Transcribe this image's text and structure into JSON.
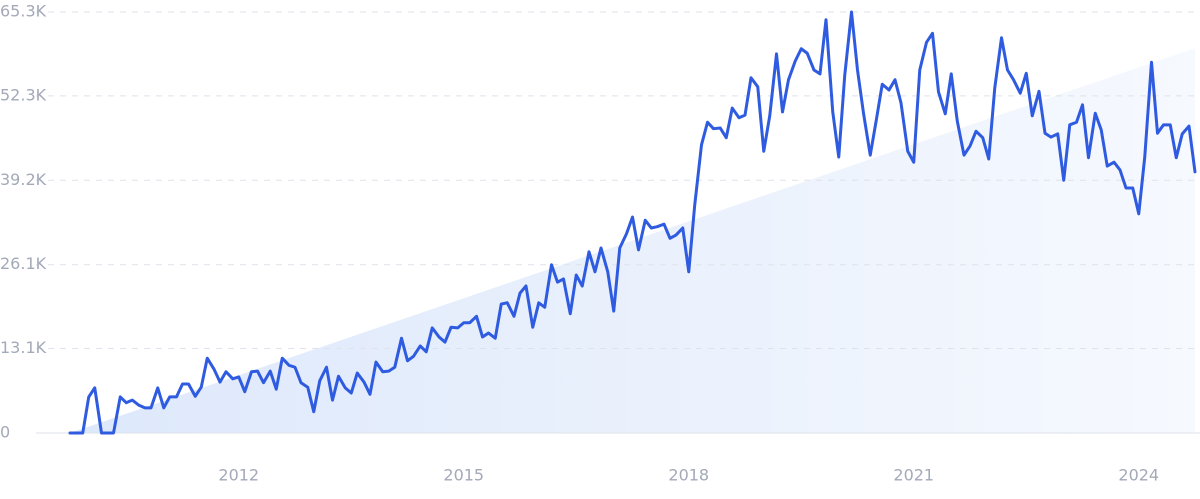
{
  "chart_data": {
    "type": "line",
    "x": [
      2009.75,
      2009.83,
      2009.92,
      2010,
      2010.08,
      2010.17,
      2010.25,
      2010.33,
      2010.42,
      2010.5,
      2010.58,
      2010.67,
      2010.75,
      2010.83,
      2010.92,
      2011,
      2011.08,
      2011.17,
      2011.25,
      2011.33,
      2011.42,
      2011.5,
      2011.58,
      2011.67,
      2011.75,
      2011.83,
      2011.92,
      2012,
      2012.08,
      2012.17,
      2012.25,
      2012.33,
      2012.42,
      2012.5,
      2012.58,
      2012.67,
      2012.75,
      2012.83,
      2012.92,
      2013,
      2013.08,
      2013.17,
      2013.25,
      2013.33,
      2013.42,
      2013.5,
      2013.58,
      2013.67,
      2013.75,
      2013.83,
      2013.92,
      2014,
      2014.08,
      2014.17,
      2014.25,
      2014.33,
      2014.42,
      2014.5,
      2014.58,
      2014.67,
      2014.75,
      2014.83,
      2014.92,
      2015,
      2015.08,
      2015.17,
      2015.25,
      2015.33,
      2015.42,
      2015.5,
      2015.58,
      2015.67,
      2015.75,
      2015.83,
      2015.92,
      2016,
      2016.08,
      2016.17,
      2016.25,
      2016.33,
      2016.42,
      2016.5,
      2016.58,
      2016.67,
      2016.75,
      2016.83,
      2016.92,
      2017,
      2017.08,
      2017.17,
      2017.25,
      2017.33,
      2017.42,
      2017.5,
      2017.58,
      2017.67,
      2017.75,
      2017.83,
      2017.92,
      2018,
      2018.08,
      2018.17,
      2018.25,
      2018.33,
      2018.42,
      2018.5,
      2018.58,
      2018.67,
      2018.75,
      2018.83,
      2018.92,
      2019,
      2019.08,
      2019.17,
      2019.25,
      2019.33,
      2019.42,
      2019.5,
      2019.58,
      2019.67,
      2019.75,
      2019.83,
      2019.92,
      2020,
      2020.08,
      2020.17,
      2020.25,
      2020.33,
      2020.42,
      2020.5,
      2020.58,
      2020.67,
      2020.75,
      2020.83,
      2020.92,
      2021,
      2021.08,
      2021.17,
      2021.25,
      2021.33,
      2021.42,
      2021.5,
      2021.58,
      2021.67,
      2021.75,
      2021.83,
      2021.92,
      2022,
      2022.08,
      2022.17,
      2022.25,
      2022.33,
      2022.42,
      2022.5,
      2022.58,
      2022.67,
      2022.75,
      2022.83,
      2022.92,
      2023,
      2023.08,
      2023.17,
      2023.25,
      2023.33,
      2023.42,
      2023.5,
      2023.58,
      2023.67,
      2023.75,
      2023.83,
      2023.92,
      2024,
      2024.08,
      2024.17,
      2024.25,
      2024.33,
      2024.42,
      2024.5,
      2024.58,
      2024.67,
      2024.75
    ],
    "values": [
      0,
      0,
      0,
      5600,
      7000,
      0,
      0,
      0,
      5600,
      4700,
      5100,
      4300,
      3900,
      3900,
      7000,
      3900,
      5600,
      5600,
      7600,
      7600,
      5700,
      7100,
      11600,
      9900,
      7900,
      9500,
      8400,
      8700,
      6400,
      9500,
      9600,
      7800,
      9600,
      6800,
      11600,
      10500,
      10200,
      7800,
      7100,
      3300,
      8100,
      10200,
      5100,
      8800,
      7000,
      6200,
      9300,
      7900,
      6000,
      11000,
      9500,
      9600,
      10200,
      14700,
      11200,
      11900,
      13500,
      12600,
      16300,
      14900,
      14100,
      16400,
      16300,
      17100,
      17100,
      18100,
      14900,
      15500,
      14700,
      20000,
      20200,
      18100,
      21700,
      22800,
      16400,
      20200,
      19500,
      26100,
      23400,
      23900,
      18500,
      24500,
      22800,
      28100,
      25000,
      28700,
      25000,
      18900,
      28700,
      30900,
      33500,
      28400,
      33000,
      31800,
      32000,
      32400,
      30200,
      30700,
      31800,
      25000,
      35400,
      44700,
      48200,
      47200,
      47300,
      45800,
      50400,
      48900,
      49300,
      55100,
      53700,
      43700,
      49200,
      58800,
      49800,
      54800,
      57700,
      59600,
      58900,
      56300,
      55700,
      64100,
      49800,
      42800,
      55500,
      65300,
      56300,
      49600,
      43100,
      48500,
      54100,
      53200,
      54800,
      51200,
      43700,
      42000,
      56300,
      60600,
      62000,
      52900,
      49500,
      55700,
      48400,
      43100,
      44500,
      46800,
      45800,
      42500,
      53500,
      61300,
      56300,
      54800,
      52700,
      55800,
      49200,
      53000,
      46500,
      45900,
      46400,
      39200,
      47800,
      48200,
      50900,
      42700,
      49600,
      47000,
      41400,
      42000,
      40800,
      38000,
      38000,
      34000,
      42800,
      57500,
      46500,
      47800,
      47800,
      42700,
      46400,
      47600,
      40500
    ],
    "color": "#2f5be0",
    "trend": {
      "x": [
        2009.75,
        2024.75
      ],
      "values": [
        0,
        59700
      ]
    },
    "xlim": [
      2009.75,
      2024.75
    ],
    "xticks": [
      2012,
      2015,
      2018,
      2021,
      2024
    ],
    "ylim": [
      0,
      65300
    ],
    "yticks": [
      0,
      {
        "value": 13100,
        "label": "13.1K"
      },
      {
        "value": 26100,
        "label": "26.1K"
      },
      {
        "value": 39200,
        "label": "39.2K"
      },
      {
        "value": 52300,
        "label": "52.3K"
      },
      {
        "value": 65300,
        "label": "65.3K"
      }
    ],
    "grid": true
  }
}
